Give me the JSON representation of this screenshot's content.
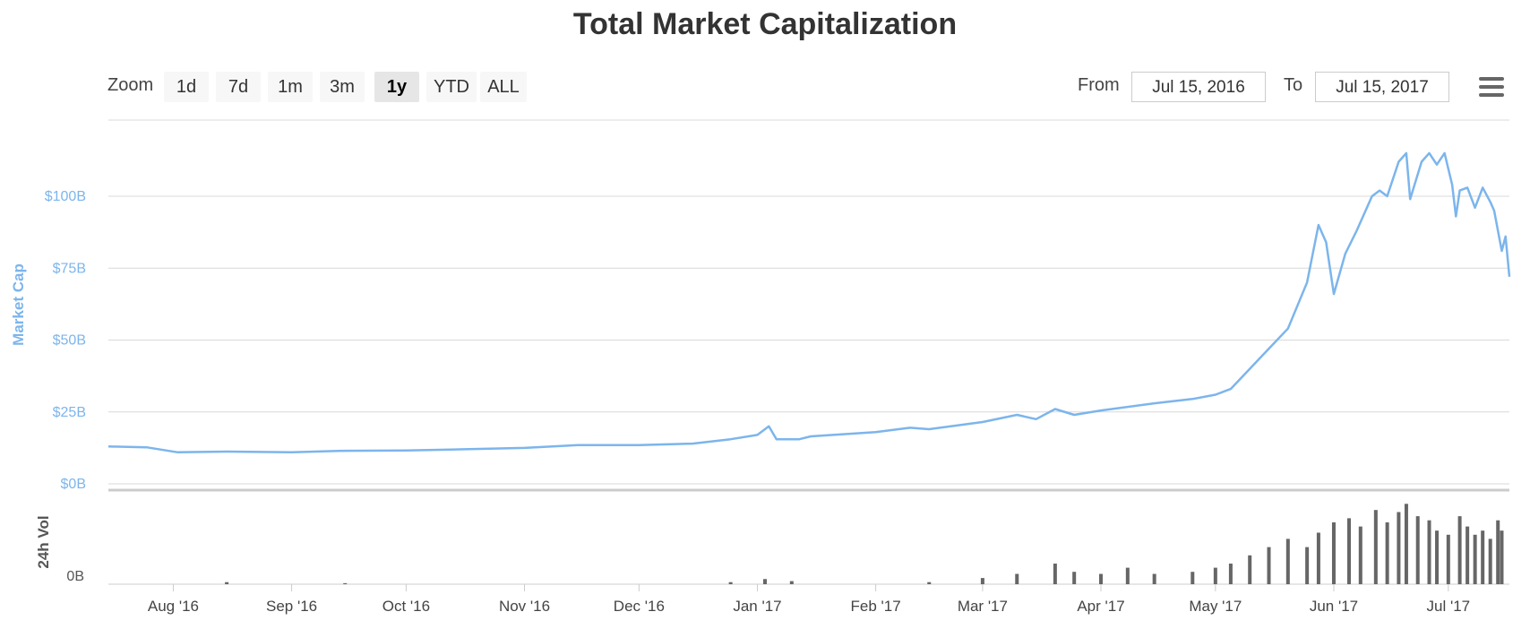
{
  "title": "Total Market Capitalization",
  "zoom": {
    "label": "Zoom",
    "buttons": [
      "1d",
      "7d",
      "1m",
      "3m",
      "1y",
      "YTD",
      "ALL"
    ],
    "active": "1y"
  },
  "range": {
    "from_label": "From",
    "from_value": "Jul 15, 2016",
    "to_label": "To",
    "to_value": "Jul 15, 2017"
  },
  "menu_icon": "hamburger-menu-icon",
  "colors": {
    "line": "#7cb5ec",
    "volume": "#666666",
    "grid": "#d9d9d9",
    "axis_text": "#7cb5ec"
  },
  "chart_data": {
    "type": "line",
    "x_range": [
      "2016-07-15",
      "2017-07-15"
    ],
    "x_tick_labels": [
      "Aug '16",
      "Sep '16",
      "Oct '16",
      "Nov '16",
      "Dec '16",
      "Jan '17",
      "Feb '17",
      "Mar '17",
      "Apr '17",
      "May '17",
      "Jun '17",
      "Jul '17"
    ],
    "y_label": "Market Cap",
    "y_tick_labels": [
      "$0B",
      "$25B",
      "$50B",
      "$75B",
      "$100B"
    ],
    "ylim": [
      0,
      125
    ],
    "grid": true,
    "series": [
      {
        "points": [
          [
            "2016-07-15",
            13.0
          ],
          [
            "2016-07-25",
            12.7
          ],
          [
            "2016-08-02",
            11.0
          ],
          [
            "2016-08-15",
            11.2
          ],
          [
            "2016-09-01",
            11.0
          ],
          [
            "2016-09-15",
            11.5
          ],
          [
            "2016-10-01",
            11.6
          ],
          [
            "2016-10-15",
            12.0
          ],
          [
            "2016-11-01",
            12.5
          ],
          [
            "2016-11-15",
            13.5
          ],
          [
            "2016-12-01",
            13.5
          ],
          [
            "2016-12-15",
            14.0
          ],
          [
            "2016-12-25",
            15.5
          ],
          [
            "2017-01-01",
            17.0
          ],
          [
            "2017-01-04",
            20.0
          ],
          [
            "2017-01-06",
            15.5
          ],
          [
            "2017-01-12",
            15.5
          ],
          [
            "2017-01-15",
            16.5
          ],
          [
            "2017-02-01",
            18.0
          ],
          [
            "2017-02-10",
            19.5
          ],
          [
            "2017-02-15",
            19.0
          ],
          [
            "2017-03-01",
            21.5
          ],
          [
            "2017-03-10",
            24.0
          ],
          [
            "2017-03-15",
            22.5
          ],
          [
            "2017-03-20",
            26.0
          ],
          [
            "2017-03-25",
            24.0
          ],
          [
            "2017-04-01",
            25.5
          ],
          [
            "2017-04-15",
            28.0
          ],
          [
            "2017-04-25",
            29.5
          ],
          [
            "2017-05-01",
            31.0
          ],
          [
            "2017-05-05",
            33.0
          ],
          [
            "2017-05-10",
            40.0
          ],
          [
            "2017-05-15",
            47.0
          ],
          [
            "2017-05-20",
            54.0
          ],
          [
            "2017-05-25",
            70.0
          ],
          [
            "2017-05-28",
            90.0
          ],
          [
            "2017-05-30",
            84.0
          ],
          [
            "2017-06-01",
            66.0
          ],
          [
            "2017-06-04",
            80.0
          ],
          [
            "2017-06-07",
            88.0
          ],
          [
            "2017-06-11",
            100.0
          ],
          [
            "2017-06-13",
            102.0
          ],
          [
            "2017-06-15",
            100.0
          ],
          [
            "2017-06-18",
            112.0
          ],
          [
            "2017-06-20",
            115.0
          ],
          [
            "2017-06-21",
            99.0
          ],
          [
            "2017-06-24",
            112.0
          ],
          [
            "2017-06-26",
            115.0
          ],
          [
            "2017-06-28",
            111.0
          ],
          [
            "2017-06-30",
            115.0
          ],
          [
            "2017-07-02",
            104.0
          ],
          [
            "2017-07-03",
            93.0
          ],
          [
            "2017-07-04",
            102.0
          ],
          [
            "2017-07-06",
            103.0
          ],
          [
            "2017-07-08",
            96.0
          ],
          [
            "2017-07-10",
            103.0
          ],
          [
            "2017-07-12",
            98.0
          ],
          [
            "2017-07-13",
            95.0
          ],
          [
            "2017-07-14",
            88.0
          ],
          [
            "2017-07-15",
            81.0
          ],
          [
            "2017-07-16",
            86.0
          ],
          [
            "2017-07-17",
            72.0
          ]
        ]
      }
    ],
    "volume_label": "24h Vol",
    "volume_tick_labels": [
      "0B"
    ],
    "volume_bars": [
      [
        "2016-08-15",
        0.1
      ],
      [
        "2016-09-15",
        0.05
      ],
      [
        "2016-12-25",
        0.1
      ],
      [
        "2017-01-03",
        0.25
      ],
      [
        "2017-01-10",
        0.15
      ],
      [
        "2017-02-15",
        0.1
      ],
      [
        "2017-03-01",
        0.3
      ],
      [
        "2017-03-10",
        0.5
      ],
      [
        "2017-03-20",
        1.0
      ],
      [
        "2017-03-25",
        0.6
      ],
      [
        "2017-04-01",
        0.5
      ],
      [
        "2017-04-08",
        0.8
      ],
      [
        "2017-04-15",
        0.5
      ],
      [
        "2017-04-25",
        0.6
      ],
      [
        "2017-05-01",
        0.8
      ],
      [
        "2017-05-05",
        1.0
      ],
      [
        "2017-05-10",
        1.4
      ],
      [
        "2017-05-15",
        1.8
      ],
      [
        "2017-05-20",
        2.2
      ],
      [
        "2017-05-25",
        1.8
      ],
      [
        "2017-05-28",
        2.5
      ],
      [
        "2017-06-01",
        3.0
      ],
      [
        "2017-06-05",
        3.2
      ],
      [
        "2017-06-08",
        2.8
      ],
      [
        "2017-06-12",
        3.6
      ],
      [
        "2017-06-15",
        3.0
      ],
      [
        "2017-06-18",
        3.5
      ],
      [
        "2017-06-20",
        3.9
      ],
      [
        "2017-06-23",
        3.3
      ],
      [
        "2017-06-26",
        3.1
      ],
      [
        "2017-06-28",
        2.6
      ],
      [
        "2017-07-01",
        2.4
      ],
      [
        "2017-07-04",
        3.3
      ],
      [
        "2017-07-06",
        2.8
      ],
      [
        "2017-07-08",
        2.4
      ],
      [
        "2017-07-10",
        2.6
      ],
      [
        "2017-07-12",
        2.2
      ],
      [
        "2017-07-14",
        3.1
      ],
      [
        "2017-07-15",
        2.6
      ]
    ],
    "volume_ylim": [
      0,
      4
    ]
  }
}
